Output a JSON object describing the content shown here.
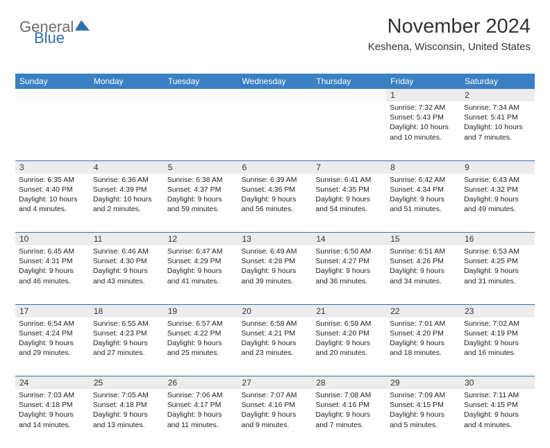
{
  "logo": {
    "part1": "General",
    "part2": "Blue"
  },
  "header": {
    "title": "November 2024",
    "subtitle": "Keshena, Wisconsin, United States"
  },
  "colors": {
    "header_bg": "#3a80c2",
    "header_text": "#ffffff",
    "daynum_bg": "#ececec",
    "border": "#3a6ea5",
    "logo_gray": "#6b6b6b",
    "logo_blue": "#2f6fb0"
  },
  "weekdays": [
    "Sunday",
    "Monday",
    "Tuesday",
    "Wednesday",
    "Thursday",
    "Friday",
    "Saturday"
  ],
  "weeks": [
    {
      "nums": [
        "",
        "",
        "",
        "",
        "",
        "1",
        "2"
      ],
      "cells": [
        null,
        null,
        null,
        null,
        null,
        {
          "sunrise": "Sunrise: 7:32 AM",
          "sunset": "Sunset: 5:43 PM",
          "daylight": "Daylight: 10 hours and 10 minutes."
        },
        {
          "sunrise": "Sunrise: 7:34 AM",
          "sunset": "Sunset: 5:41 PM",
          "daylight": "Daylight: 10 hours and 7 minutes."
        }
      ]
    },
    {
      "nums": [
        "3",
        "4",
        "5",
        "6",
        "7",
        "8",
        "9"
      ],
      "cells": [
        {
          "sunrise": "Sunrise: 6:35 AM",
          "sunset": "Sunset: 4:40 PM",
          "daylight": "Daylight: 10 hours and 4 minutes."
        },
        {
          "sunrise": "Sunrise: 6:36 AM",
          "sunset": "Sunset: 4:39 PM",
          "daylight": "Daylight: 10 hours and 2 minutes."
        },
        {
          "sunrise": "Sunrise: 6:38 AM",
          "sunset": "Sunset: 4:37 PM",
          "daylight": "Daylight: 9 hours and 59 minutes."
        },
        {
          "sunrise": "Sunrise: 6:39 AM",
          "sunset": "Sunset: 4:36 PM",
          "daylight": "Daylight: 9 hours and 56 minutes."
        },
        {
          "sunrise": "Sunrise: 6:41 AM",
          "sunset": "Sunset: 4:35 PM",
          "daylight": "Daylight: 9 hours and 54 minutes."
        },
        {
          "sunrise": "Sunrise: 6:42 AM",
          "sunset": "Sunset: 4:34 PM",
          "daylight": "Daylight: 9 hours and 51 minutes."
        },
        {
          "sunrise": "Sunrise: 6:43 AM",
          "sunset": "Sunset: 4:32 PM",
          "daylight": "Daylight: 9 hours and 49 minutes."
        }
      ]
    },
    {
      "nums": [
        "10",
        "11",
        "12",
        "13",
        "14",
        "15",
        "16"
      ],
      "cells": [
        {
          "sunrise": "Sunrise: 6:45 AM",
          "sunset": "Sunset: 4:31 PM",
          "daylight": "Daylight: 9 hours and 46 minutes."
        },
        {
          "sunrise": "Sunrise: 6:46 AM",
          "sunset": "Sunset: 4:30 PM",
          "daylight": "Daylight: 9 hours and 43 minutes."
        },
        {
          "sunrise": "Sunrise: 6:47 AM",
          "sunset": "Sunset: 4:29 PM",
          "daylight": "Daylight: 9 hours and 41 minutes."
        },
        {
          "sunrise": "Sunrise: 6:49 AM",
          "sunset": "Sunset: 4:28 PM",
          "daylight": "Daylight: 9 hours and 39 minutes."
        },
        {
          "sunrise": "Sunrise: 6:50 AM",
          "sunset": "Sunset: 4:27 PM",
          "daylight": "Daylight: 9 hours and 36 minutes."
        },
        {
          "sunrise": "Sunrise: 6:51 AM",
          "sunset": "Sunset: 4:26 PM",
          "daylight": "Daylight: 9 hours and 34 minutes."
        },
        {
          "sunrise": "Sunrise: 6:53 AM",
          "sunset": "Sunset: 4:25 PM",
          "daylight": "Daylight: 9 hours and 31 minutes."
        }
      ]
    },
    {
      "nums": [
        "17",
        "18",
        "19",
        "20",
        "21",
        "22",
        "23"
      ],
      "cells": [
        {
          "sunrise": "Sunrise: 6:54 AM",
          "sunset": "Sunset: 4:24 PM",
          "daylight": "Daylight: 9 hours and 29 minutes."
        },
        {
          "sunrise": "Sunrise: 6:55 AM",
          "sunset": "Sunset: 4:23 PM",
          "daylight": "Daylight: 9 hours and 27 minutes."
        },
        {
          "sunrise": "Sunrise: 6:57 AM",
          "sunset": "Sunset: 4:22 PM",
          "daylight": "Daylight: 9 hours and 25 minutes."
        },
        {
          "sunrise": "Sunrise: 6:58 AM",
          "sunset": "Sunset: 4:21 PM",
          "daylight": "Daylight: 9 hours and 23 minutes."
        },
        {
          "sunrise": "Sunrise: 6:59 AM",
          "sunset": "Sunset: 4:20 PM",
          "daylight": "Daylight: 9 hours and 20 minutes."
        },
        {
          "sunrise": "Sunrise: 7:01 AM",
          "sunset": "Sunset: 4:20 PM",
          "daylight": "Daylight: 9 hours and 18 minutes."
        },
        {
          "sunrise": "Sunrise: 7:02 AM",
          "sunset": "Sunset: 4:19 PM",
          "daylight": "Daylight: 9 hours and 16 minutes."
        }
      ]
    },
    {
      "nums": [
        "24",
        "25",
        "26",
        "27",
        "28",
        "29",
        "30"
      ],
      "cells": [
        {
          "sunrise": "Sunrise: 7:03 AM",
          "sunset": "Sunset: 4:18 PM",
          "daylight": "Daylight: 9 hours and 14 minutes."
        },
        {
          "sunrise": "Sunrise: 7:05 AM",
          "sunset": "Sunset: 4:18 PM",
          "daylight": "Daylight: 9 hours and 13 minutes."
        },
        {
          "sunrise": "Sunrise: 7:06 AM",
          "sunset": "Sunset: 4:17 PM",
          "daylight": "Daylight: 9 hours and 11 minutes."
        },
        {
          "sunrise": "Sunrise: 7:07 AM",
          "sunset": "Sunset: 4:16 PM",
          "daylight": "Daylight: 9 hours and 9 minutes."
        },
        {
          "sunrise": "Sunrise: 7:08 AM",
          "sunset": "Sunset: 4:16 PM",
          "daylight": "Daylight: 9 hours and 7 minutes."
        },
        {
          "sunrise": "Sunrise: 7:09 AM",
          "sunset": "Sunset: 4:15 PM",
          "daylight": "Daylight: 9 hours and 5 minutes."
        },
        {
          "sunrise": "Sunrise: 7:11 AM",
          "sunset": "Sunset: 4:15 PM",
          "daylight": "Daylight: 9 hours and 4 minutes."
        }
      ]
    }
  ]
}
